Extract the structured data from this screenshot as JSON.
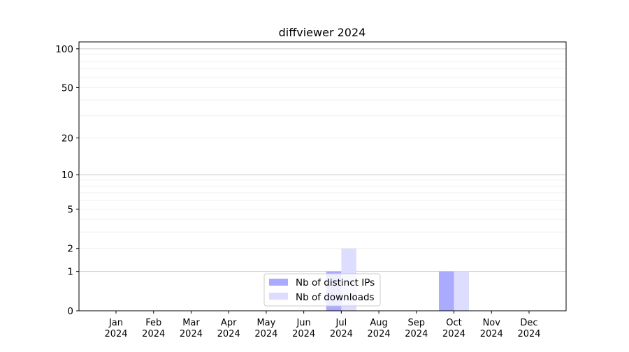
{
  "chart_data": {
    "type": "bar",
    "title": "diffviewer 2024",
    "xlabel": "",
    "ylabel": "",
    "y_scale": "log1p",
    "ylim": [
      0,
      113
    ],
    "y_ticks": [
      0,
      1,
      2,
      5,
      10,
      20,
      50,
      100
    ],
    "y_tick_labels": [
      "0",
      "1",
      "2",
      "5",
      "10",
      "20",
      "50",
      "100"
    ],
    "grid": "y major and minor",
    "legend_position": "lower center",
    "categories": [
      "Jan\n2024",
      "Feb\n2024",
      "Mar\n2024",
      "Apr\n2024",
      "May\n2024",
      "Jun\n2024",
      "Jul\n2024",
      "Aug\n2024",
      "Sep\n2024",
      "Oct\n2024",
      "Nov\n2024",
      "Dec\n2024"
    ],
    "month_labels": [
      "Jan",
      "Feb",
      "Mar",
      "Apr",
      "May",
      "Jun",
      "Jul",
      "Aug",
      "Sep",
      "Oct",
      "Nov",
      "Dec"
    ],
    "year_label": "2024",
    "series": [
      {
        "name": "Nb of distinct IPs",
        "color": "#aaaaff",
        "values": [
          0,
          0,
          0,
          0,
          0,
          0,
          1,
          0,
          0,
          1,
          0,
          0
        ]
      },
      {
        "name": "Nb of downloads",
        "color": "#ddddff",
        "values": [
          0,
          0,
          0,
          0,
          0,
          0,
          2,
          0,
          0,
          1,
          0,
          0
        ]
      }
    ]
  }
}
